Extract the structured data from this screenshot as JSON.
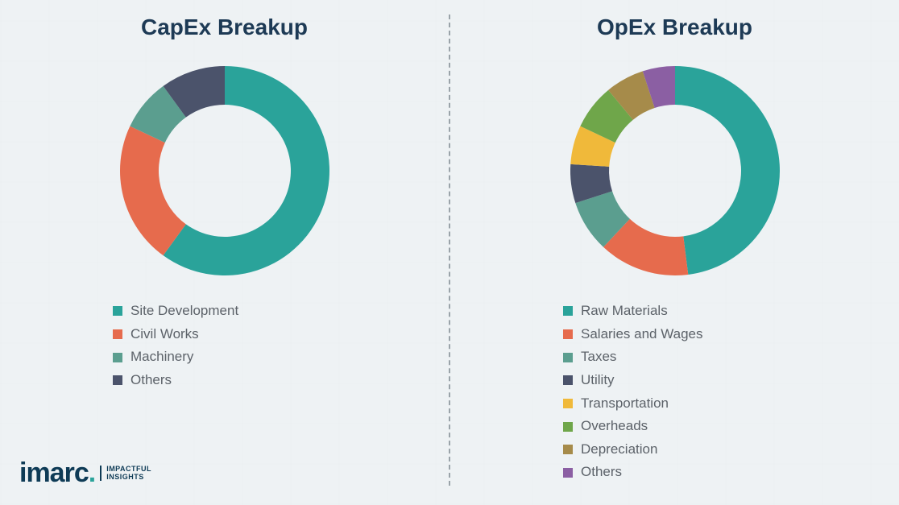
{
  "background_color": "#eef2f4",
  "title_color": "#1d3a55",
  "legend_text_color": "#5c6269",
  "divider_color": "#9aa3a9",
  "donut": {
    "outer_radius": 130,
    "inner_radius": 82,
    "gap_deg": 0,
    "start_angle_deg": 0
  },
  "capex": {
    "title": "CapEx Breakup",
    "slices": [
      {
        "label": "Site Development",
        "value": 60,
        "color": "#2aa39a"
      },
      {
        "label": "Civil Works",
        "value": 22,
        "color": "#e66b4d"
      },
      {
        "label": "Machinery",
        "value": 8,
        "color": "#5b9e8f"
      },
      {
        "label": "Others",
        "value": 10,
        "color": "#4b536b"
      }
    ]
  },
  "opex": {
    "title": "OpEx Breakup",
    "slices": [
      {
        "label": "Raw Materials",
        "value": 48,
        "color": "#2aa39a"
      },
      {
        "label": "Salaries and Wages",
        "value": 14,
        "color": "#e66b4d"
      },
      {
        "label": "Taxes",
        "value": 8,
        "color": "#5b9e8f"
      },
      {
        "label": "Utility",
        "value": 6,
        "color": "#4b536b"
      },
      {
        "label": "Transportation",
        "value": 6,
        "color": "#f0b93a"
      },
      {
        "label": "Overheads",
        "value": 7,
        "color": "#6fa64a"
      },
      {
        "label": "Depreciation",
        "value": 6,
        "color": "#a68b4a"
      },
      {
        "label": "Others",
        "value": 5,
        "color": "#8b5fa3"
      }
    ]
  },
  "logo": {
    "mark": "imarc",
    "tag_line1": "IMPACTFUL",
    "tag_line2": "INSIGHTS",
    "mark_color": "#0e3b56",
    "accent_color": "#2aa39a"
  }
}
